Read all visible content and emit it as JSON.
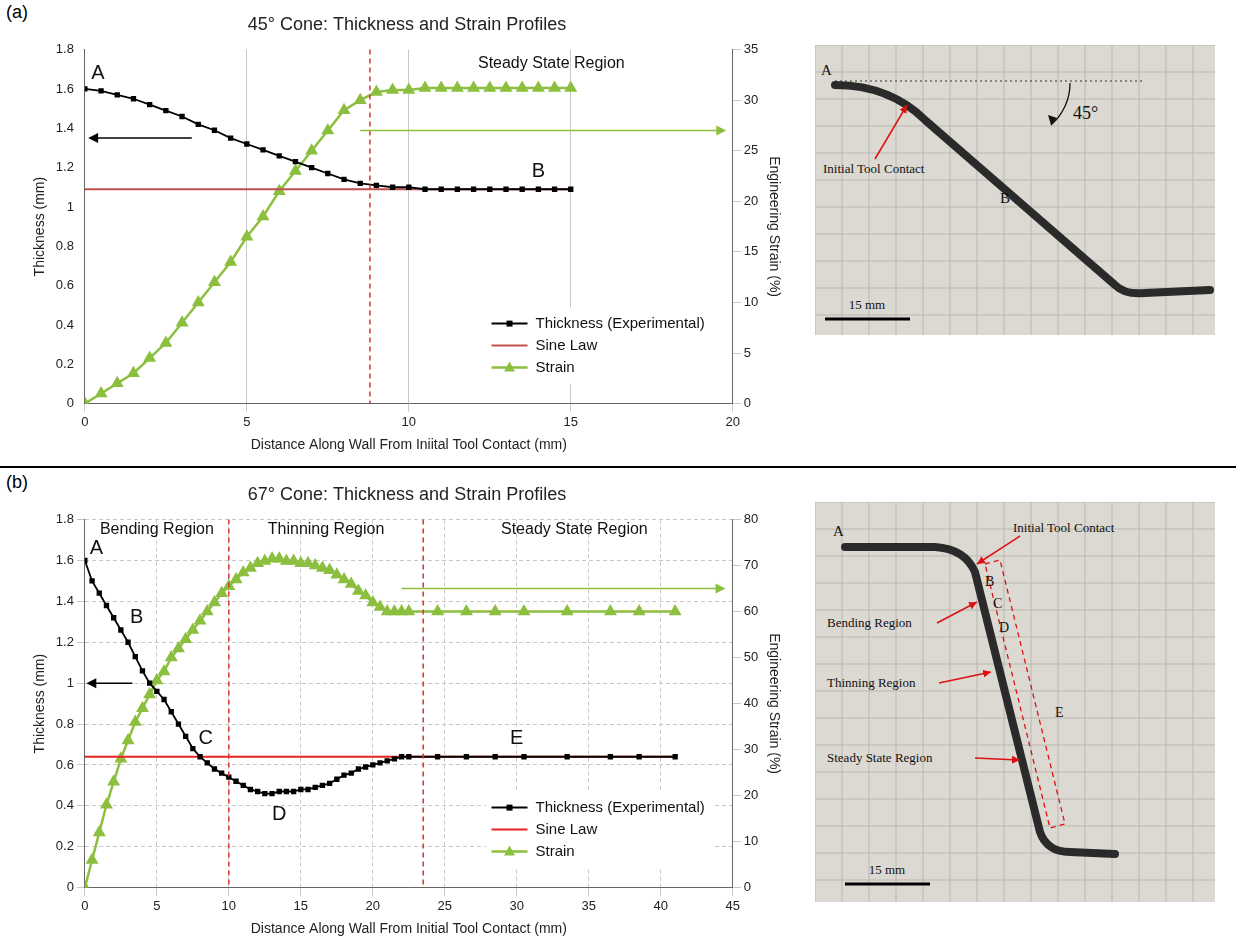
{
  "panel_letters": [
    "(a)",
    "(b)"
  ],
  "chart_data": [
    {
      "type": "line",
      "title": "45° Cone: Thickness and Strain Profiles",
      "x_label": "Distance Along Wall From Iniital Tool Contact (mm)",
      "y_label": "Thickness (mm)",
      "y2_label": "Engineering Strain (%)",
      "xlim": [
        0,
        20
      ],
      "xticks": [
        0,
        5,
        10,
        15,
        20
      ],
      "ylim": [
        0,
        1.8
      ],
      "yticks": [
        0,
        0.2,
        0.4,
        0.6,
        0.8,
        1,
        1.2,
        1.4,
        1.6,
        1.8
      ],
      "y2lim": [
        0,
        35
      ],
      "y2ticks": [
        0,
        5,
        10,
        15,
        20,
        25,
        30,
        35
      ],
      "grid": "x",
      "legend": "lower right",
      "series": [
        {
          "name": "Thickness (Experimental)",
          "color": "#000000",
          "marker": "square",
          "line_style": "solid",
          "x": [
            0,
            0.5,
            1,
            1.5,
            2,
            2.5,
            3,
            3.5,
            4,
            4.5,
            5,
            5.5,
            6,
            6.5,
            7,
            7.5,
            8,
            8.5,
            9,
            9.5,
            10,
            10.5,
            11,
            11.5,
            12,
            12.5,
            13,
            13.5,
            14,
            14.5,
            15
          ],
          "values": [
            1.6,
            1.59,
            1.57,
            1.55,
            1.52,
            1.49,
            1.46,
            1.42,
            1.39,
            1.35,
            1.32,
            1.29,
            1.26,
            1.23,
            1.2,
            1.17,
            1.14,
            1.12,
            1.11,
            1.1,
            1.1,
            1.09,
            1.09,
            1.09,
            1.09,
            1.09,
            1.09,
            1.09,
            1.09,
            1.09,
            1.09
          ]
        },
        {
          "name": "Sine Law",
          "color": "#c0504d",
          "marker": "none",
          "line_style": "solid",
          "x": [
            0,
            15
          ],
          "values": [
            1.09,
            1.09
          ]
        },
        {
          "name": "Strain",
          "color": "#8cbf3f",
          "marker": "triangle",
          "line_style": "solid",
          "axis": "y2",
          "x": [
            0,
            0.5,
            1,
            1.5,
            2,
            2.5,
            3,
            3.5,
            4,
            4.5,
            5,
            5.5,
            6,
            6.5,
            7,
            7.5,
            8,
            8.5,
            9,
            9.5,
            10,
            10.5,
            11,
            11.5,
            12,
            12.5,
            13,
            13.5,
            14,
            14.5,
            15
          ],
          "values": [
            0,
            1,
            2,
            3,
            4.5,
            6,
            8,
            10,
            12,
            14,
            16.5,
            18.5,
            21,
            23,
            25,
            27,
            29,
            30,
            30.8,
            31,
            31,
            31.2,
            31.2,
            31.2,
            31.2,
            31.2,
            31.2,
            31.2,
            31.2,
            31.2,
            31.2
          ]
        }
      ],
      "annotations": [
        {
          "text": "A",
          "x": 0.4,
          "y": 1.68
        },
        {
          "text": "B",
          "x": 14,
          "y": 1.18
        },
        {
          "text": "Steady State Region",
          "x": 14.4,
          "y": 1.73
        }
      ],
      "vlines": [
        {
          "x": 8.8,
          "color": "#e03030",
          "line_style": "dashed"
        }
      ],
      "arrows": [
        {
          "axis": "y",
          "x": [
            3.3,
            0.1
          ],
          "y": 1.35,
          "color": "#000000"
        },
        {
          "axis": "y2",
          "x": [
            8.5,
            19.8
          ],
          "y": 27,
          "color": "#8cbf3f"
        }
      ]
    },
    {
      "type": "line",
      "title": "67° Cone: Thickness and Strain Profiles",
      "x_label": "Distance Along Wall From Initial Tool Contact (mm)",
      "y_label": "Thickness (mm)",
      "y2_label": "Engineering Strain (%)",
      "xlim": [
        0,
        45
      ],
      "xticks": [
        0,
        5,
        10,
        15,
        20,
        25,
        30,
        35,
        40,
        45
      ],
      "ylim": [
        0,
        1.8
      ],
      "yticks": [
        0,
        0.2,
        0.4,
        0.6,
        0.8,
        1,
        1.2,
        1.4,
        1.6,
        1.8
      ],
      "y2lim": [
        0,
        80
      ],
      "y2ticks": [
        0,
        10,
        20,
        30,
        40,
        50,
        60,
        70,
        80
      ],
      "grid": true,
      "legend": "lower right",
      "series": [
        {
          "name": "Thickness (Experimental)",
          "color": "#000000",
          "marker": "square",
          "line_style": "solid",
          "x": [
            0,
            0.5,
            1,
            1.5,
            2,
            2.5,
            3,
            3.5,
            4,
            4.5,
            5,
            5.5,
            6,
            6.5,
            7,
            7.5,
            8,
            8.5,
            9,
            9.5,
            10,
            10.5,
            11,
            11.5,
            12,
            12.5,
            13,
            13.5,
            14,
            14.5,
            15,
            15.5,
            16,
            16.5,
            17,
            17.5,
            18,
            18.5,
            19,
            19.5,
            20,
            20.5,
            21,
            21.5,
            22,
            22.5,
            24.5,
            26.5,
            28.5,
            30.5,
            33.5,
            36.5,
            38.5,
            41
          ],
          "values": [
            1.6,
            1.5,
            1.44,
            1.38,
            1.32,
            1.26,
            1.2,
            1.13,
            1.06,
            1.0,
            0.96,
            0.92,
            0.86,
            0.8,
            0.74,
            0.68,
            0.64,
            0.61,
            0.58,
            0.56,
            0.54,
            0.52,
            0.5,
            0.48,
            0.47,
            0.46,
            0.46,
            0.47,
            0.47,
            0.47,
            0.48,
            0.48,
            0.49,
            0.5,
            0.51,
            0.53,
            0.55,
            0.56,
            0.58,
            0.59,
            0.6,
            0.61,
            0.62,
            0.63,
            0.64,
            0.64,
            0.64,
            0.64,
            0.64,
            0.64,
            0.64,
            0.64,
            0.64,
            0.64
          ]
        },
        {
          "name": "Sine Law",
          "color": "#e8231f",
          "marker": "none",
          "line_style": "solid",
          "x": [
            0,
            41
          ],
          "values": [
            0.64,
            0.64
          ]
        },
        {
          "name": "Strain",
          "color": "#8cbf3f",
          "marker": "triangle",
          "line_style": "solid",
          "axis": "y2",
          "x": [
            0,
            0.5,
            1,
            1.5,
            2,
            2.5,
            3,
            3.5,
            4,
            4.5,
            5,
            5.5,
            6,
            6.5,
            7,
            7.5,
            8,
            8.5,
            9,
            9.5,
            10,
            10.5,
            11,
            11.5,
            12,
            12.5,
            13,
            13.5,
            14,
            14.5,
            15,
            15.5,
            16,
            16.5,
            17,
            17.5,
            18,
            18.5,
            19,
            19.5,
            20,
            20.5,
            21,
            21.5,
            22,
            22.5,
            24.5,
            26.5,
            28.5,
            30.5,
            33.5,
            36.5,
            38.5,
            41
          ],
          "values": [
            0,
            6,
            12,
            18,
            23,
            28,
            32,
            36,
            39,
            42,
            45,
            47,
            50,
            52,
            54,
            56,
            58,
            60,
            62,
            64,
            65.5,
            67,
            68.5,
            69.5,
            70.5,
            71,
            71.5,
            71.5,
            71,
            71,
            70.5,
            70.5,
            70,
            69.5,
            69,
            68,
            67,
            66,
            64.5,
            63.5,
            62,
            61,
            60,
            60,
            60,
            60,
            60,
            60,
            60,
            60,
            60,
            60,
            60,
            60
          ]
        }
      ],
      "annotations": [
        {
          "text": "A",
          "x": 0.8,
          "y": 1.66
        },
        {
          "text": "B",
          "x": 3.6,
          "y": 1.32
        },
        {
          "text": "C",
          "x": 8.4,
          "y": 0.73
        },
        {
          "text": "D",
          "x": 13.5,
          "y": 0.36
        },
        {
          "text": "E",
          "x": 30,
          "y": 0.73
        },
        {
          "text": "Bending Region",
          "x": 5,
          "y": 1.75
        },
        {
          "text": "Thinning Region",
          "x": 16.75,
          "y": 1.75
        },
        {
          "text": "Steady State Region",
          "x": 34,
          "y": 1.75
        }
      ],
      "vlines": [
        {
          "x": 10,
          "color": "#e03030",
          "line_style": "dashed"
        },
        {
          "x": 23.5,
          "color": "#e03030",
          "line_style": "dashed"
        }
      ],
      "arrows": [
        {
          "axis": "y",
          "x": [
            3.3,
            0.1
          ],
          "y": 1.0,
          "color": "#000000"
        },
        {
          "axis": "y2",
          "x": [
            22,
            44.5
          ],
          "y": 65,
          "color": "#8cbf3f"
        }
      ]
    }
  ],
  "photos": [
    {
      "point_labels": [
        "A",
        "B"
      ],
      "angle_label": "45°",
      "callouts": [
        "Initial Tool Contact"
      ],
      "scale_bar": "15 mm"
    },
    {
      "point_labels": [
        "A",
        "B",
        "C",
        "D",
        "E"
      ],
      "callouts": [
        "Initial Tool Contact",
        "Bending Region",
        "Thinning Region",
        "Steady State Region"
      ],
      "scale_bar": "15 mm"
    }
  ]
}
